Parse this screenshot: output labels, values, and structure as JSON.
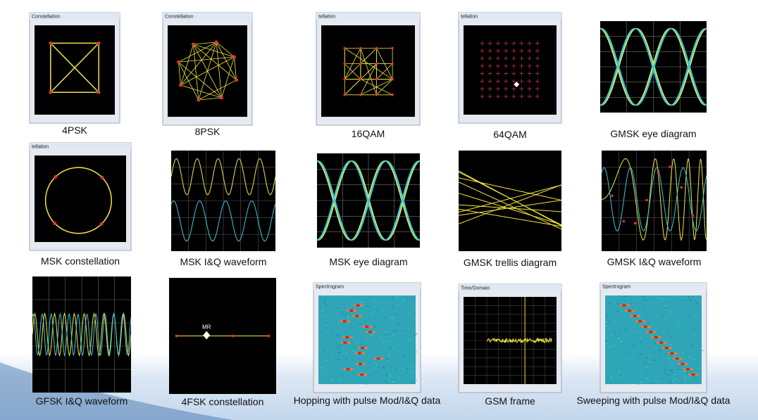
{
  "panels": [
    {
      "caption": "4PSK",
      "window_title": "Constellation"
    },
    {
      "caption": "8PSK",
      "window_title": "Constellation"
    },
    {
      "caption": "16QAM",
      "window_title": "tellation"
    },
    {
      "caption": "64QAM",
      "window_title": "tellation"
    },
    {
      "caption": "GMSK eye diagram"
    },
    {
      "caption": "MSK constellation",
      "window_title": "tellation"
    },
    {
      "caption": "MSK I&Q waveform"
    },
    {
      "caption": "MSK eye diagram"
    },
    {
      "caption": "GMSK trellis diagram"
    },
    {
      "caption": "GMSK I&Q waveform"
    },
    {
      "caption": "GFSK I&Q waveform"
    },
    {
      "caption": "4FSK constellation",
      "marker": "MR"
    },
    {
      "caption": "Hopping with pulse Mod/I&Q data",
      "window_title": "Spectrogram"
    },
    {
      "caption": "GSM frame",
      "window_title": "Time/Domain"
    },
    {
      "caption": "Sweeping with pulse Mod/I&Q data",
      "window_title": "Spectrogram"
    }
  ]
}
